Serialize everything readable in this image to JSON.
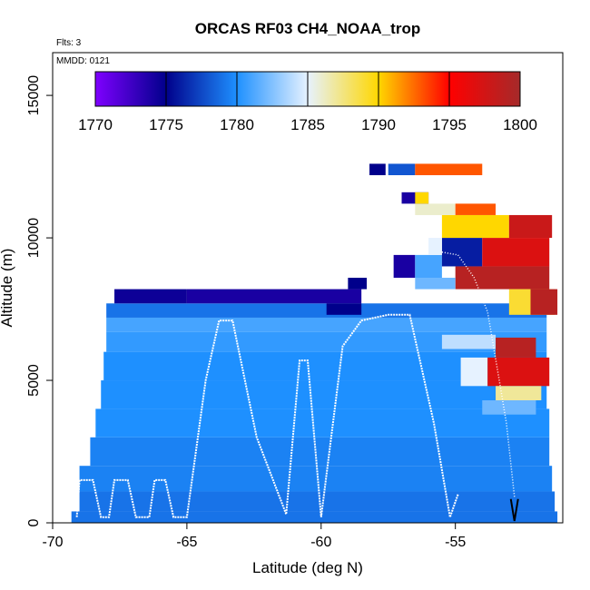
{
  "chart_data": {
    "type": "heatmap",
    "title": "ORCAS RF03 CH4_NOAA_trop",
    "flights_note": "Flts: 3",
    "date_note": "MMDD: 0121",
    "xlabel": "Latitude (deg N)",
    "ylabel": "Altitude (m)",
    "xlim": [
      -70,
      -51
    ],
    "ylim": [
      0,
      16500
    ],
    "x_ticks": [
      -70,
      -65,
      -60,
      -55
    ],
    "x_tick_labels": [
      "-70",
      "-65",
      "-60",
      "-55"
    ],
    "y_ticks": [
      0,
      5000,
      10000,
      15000
    ],
    "y_tick_labels": [
      "0",
      "5000",
      "10000",
      "15000"
    ],
    "colorbar": {
      "min": 1770,
      "max": 1800,
      "ticks": [
        1770,
        1775,
        1780,
        1785,
        1790,
        1795,
        1800
      ],
      "tick_labels": [
        "1770",
        "1775",
        "1780",
        "1785",
        "1790",
        "1795",
        "1800"
      ],
      "stops": [
        "#7f00ff",
        "#00008b",
        "#1e90ff",
        "#e6f2ff",
        "#ffd700",
        "#ff0000",
        "#a52a2a"
      ]
    },
    "cells": [
      {
        "x0": -69.3,
        "x1": -51.2,
        "y0": 0,
        "y1": 400,
        "v": 1779
      },
      {
        "x0": -69.0,
        "x1": -51.3,
        "y0": 400,
        "y1": 1100,
        "v": 1779
      },
      {
        "x0": -69.0,
        "x1": -51.4,
        "y0": 1100,
        "y1": 2000,
        "v": 1779.5
      },
      {
        "x0": -68.6,
        "x1": -51.5,
        "y0": 2000,
        "y1": 3000,
        "v": 1779.5
      },
      {
        "x0": -68.4,
        "x1": -51.5,
        "y0": 3000,
        "y1": 4000,
        "v": 1780
      },
      {
        "x0": -68.2,
        "x1": -51.6,
        "y0": 4000,
        "y1": 5000,
        "v": 1780
      },
      {
        "x0": -68.1,
        "x1": -51.6,
        "y0": 5000,
        "y1": 6000,
        "v": 1780
      },
      {
        "x0": -68.0,
        "x1": -51.6,
        "y0": 6000,
        "y1": 6700,
        "v": 1780.5
      },
      {
        "x0": -68.0,
        "x1": -51.6,
        "y0": 6700,
        "y1": 7200,
        "v": 1781
      },
      {
        "x0": -68.0,
        "x1": -51.6,
        "y0": 7200,
        "y1": 7700,
        "v": 1779
      },
      {
        "x0": -67.7,
        "x1": -65.0,
        "y0": 7700,
        "y1": 8200,
        "v": 1774.5
      },
      {
        "x0": -65.0,
        "x1": -58.5,
        "y0": 7700,
        "y1": 8200,
        "v": 1774
      },
      {
        "x0": -59.8,
        "x1": -58.5,
        "y0": 7300,
        "y1": 7700,
        "v": 1775
      },
      {
        "x0": -59.0,
        "x1": -58.3,
        "y0": 8200,
        "y1": 8600,
        "v": 1775
      },
      {
        "x0": -57.3,
        "x1": -56.5,
        "y0": 8600,
        "y1": 9400,
        "v": 1774
      },
      {
        "x0": -56.5,
        "x1": -55.5,
        "y0": 8600,
        "y1": 9400,
        "v": 1781
      },
      {
        "x0": -55.5,
        "x1": -54.0,
        "y0": 9000,
        "y1": 10000,
        "v": 1776
      },
      {
        "x0": -54.0,
        "x1": -51.5,
        "y0": 9000,
        "y1": 10000,
        "v": 1797
      },
      {
        "x0": -55.5,
        "x1": -53.0,
        "y0": 10000,
        "y1": 10800,
        "v": 1790
      },
      {
        "x0": -53.0,
        "x1": -51.4,
        "y0": 10000,
        "y1": 10800,
        "v": 1798
      },
      {
        "x0": -56.5,
        "x1": -55.0,
        "y0": 10800,
        "y1": 11200,
        "v": 1786
      },
      {
        "x0": -55.0,
        "x1": -53.5,
        "y0": 10800,
        "y1": 11200,
        "v": 1793
      },
      {
        "x0": -57.0,
        "x1": -56.0,
        "y0": 11200,
        "y1": 11600,
        "v": 1774
      },
      {
        "x0": -56.5,
        "x1": -56.0,
        "y0": 11200,
        "y1": 11600,
        "v": 1790
      },
      {
        "x0": -57.5,
        "x1": -56.5,
        "y0": 12200,
        "y1": 12600,
        "v": 1778
      },
      {
        "x0": -56.5,
        "x1": -54.0,
        "y0": 12200,
        "y1": 12600,
        "v": 1793
      },
      {
        "x0": -58.2,
        "x1": -57.6,
        "y0": 12200,
        "y1": 12600,
        "v": 1775
      },
      {
        "x0": -56.0,
        "x1": -55.5,
        "y0": 9400,
        "y1": 10000,
        "v": 1785
      },
      {
        "x0": -55.0,
        "x1": -51.5,
        "y0": 8200,
        "y1": 9000,
        "v": 1799
      },
      {
        "x0": -56.5,
        "x1": -55.0,
        "y0": 8200,
        "y1": 8600,
        "v": 1782
      },
      {
        "x0": -53.0,
        "x1": -51.3,
        "y0": 7300,
        "y1": 8200,
        "v": 1789
      },
      {
        "x0": -52.2,
        "x1": -51.2,
        "y0": 7300,
        "y1": 8200,
        "v": 1799
      },
      {
        "x0": -55.5,
        "x1": -53.5,
        "y0": 6100,
        "y1": 6600,
        "v": 1784
      },
      {
        "x0": -53.5,
        "x1": -52.0,
        "y0": 5800,
        "y1": 6500,
        "v": 1799
      },
      {
        "x0": -54.8,
        "x1": -53.8,
        "y0": 4800,
        "y1": 5800,
        "v": 1785
      },
      {
        "x0": -53.8,
        "x1": -51.5,
        "y0": 4800,
        "y1": 5800,
        "v": 1797
      },
      {
        "x0": -53.5,
        "x1": -51.8,
        "y0": 4300,
        "y1": 4800,
        "v": 1787
      },
      {
        "x0": -54.0,
        "x1": -52.0,
        "y0": 3800,
        "y1": 4300,
        "v": 1782
      }
    ],
    "flight_track": [
      [
        -69.1,
        200
      ],
      [
        -69.0,
        1500
      ],
      [
        -68.5,
        1500
      ],
      [
        -68.2,
        200
      ],
      [
        -67.9,
        200
      ],
      [
        -67.7,
        1500
      ],
      [
        -67.2,
        1500
      ],
      [
        -66.9,
        200
      ],
      [
        -66.4,
        200
      ],
      [
        -66.2,
        1500
      ],
      [
        -65.8,
        1500
      ],
      [
        -65.5,
        200
      ],
      [
        -65.0,
        200
      ],
      [
        -64.3,
        5000
      ],
      [
        -63.8,
        7100
      ],
      [
        -63.3,
        7100
      ],
      [
        -62.4,
        3000
      ],
      [
        -61.3,
        300
      ],
      [
        -60.8,
        5700
      ],
      [
        -60.5,
        5700
      ],
      [
        -60.0,
        200
      ],
      [
        -59.2,
        6200
      ],
      [
        -58.5,
        7100
      ],
      [
        -57.5,
        7300
      ],
      [
        -56.7,
        7300
      ],
      [
        -55.8,
        3500
      ],
      [
        -55.2,
        200
      ],
      [
        -54.9,
        1000
      ]
    ],
    "descent_track": [
      [
        -55.5,
        9500
      ],
      [
        -54.9,
        9400
      ],
      [
        -54.3,
        8600
      ],
      [
        -53.8,
        7400
      ],
      [
        -53.4,
        5200
      ],
      [
        -53.1,
        3500
      ],
      [
        -52.8,
        900
      ]
    ]
  }
}
